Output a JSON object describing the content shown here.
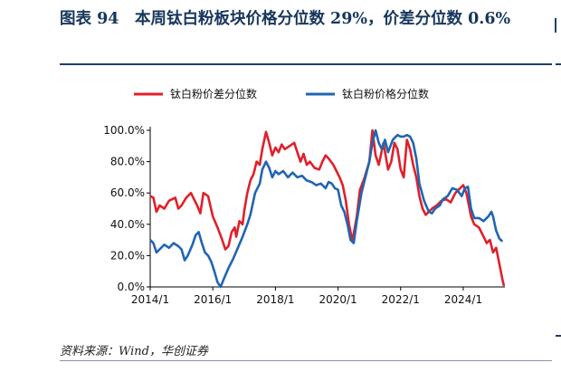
{
  "header": {
    "title": "图表 94　本周钛白粉板块价格分位数 29%，价差分位数 0.6%"
  },
  "footer": {
    "source": "资料来源：Wind，华创证券"
  },
  "colors": {
    "title": "#16365c",
    "rule": "#1f3f6b",
    "price_spread_series": "#e0202a",
    "price_series": "#1f66b3"
  },
  "chart_data": {
    "type": "line",
    "title": "本周钛白粉板块价格分位数 29%，价差分位数 0.6%",
    "xlabel": "",
    "ylabel": "",
    "x_range": [
      2014.0,
      2025.33
    ],
    "ylim": [
      0,
      100
    ],
    "grid": false,
    "legend_position": "top",
    "x_ticks": [
      {
        "value": 2014.0,
        "label": "2014/1"
      },
      {
        "value": 2016.0,
        "label": "2016/1"
      },
      {
        "value": 2018.0,
        "label": "2018/1"
      },
      {
        "value": 2020.0,
        "label": "2020/1"
      },
      {
        "value": 2022.0,
        "label": "2022/1"
      },
      {
        "value": 2024.0,
        "label": "2024/1"
      }
    ],
    "y_ticks": [
      {
        "value": 0,
        "label": "0.0%"
      },
      {
        "value": 20,
        "label": "20.0%"
      },
      {
        "value": 40,
        "label": "40.0%"
      },
      {
        "value": 60,
        "label": "60.0%"
      },
      {
        "value": 80,
        "label": "80.0%"
      },
      {
        "value": 100,
        "label": "100.0%"
      }
    ],
    "series": [
      {
        "name": "钛白粉价差分位数",
        "color": "#e0202a",
        "points": [
          [
            2014.0,
            58
          ],
          [
            2014.1,
            57
          ],
          [
            2014.2,
            48
          ],
          [
            2014.3,
            52
          ],
          [
            2014.45,
            50
          ],
          [
            2014.6,
            55
          ],
          [
            2014.8,
            57
          ],
          [
            2014.9,
            50
          ],
          [
            2015.0,
            52
          ],
          [
            2015.15,
            57
          ],
          [
            2015.3,
            60
          ],
          [
            2015.4,
            56
          ],
          [
            2015.5,
            52
          ],
          [
            2015.6,
            47
          ],
          [
            2015.7,
            60
          ],
          [
            2015.85,
            58
          ],
          [
            2016.0,
            45
          ],
          [
            2016.15,
            38
          ],
          [
            2016.3,
            30
          ],
          [
            2016.4,
            24
          ],
          [
            2016.5,
            26
          ],
          [
            2016.6,
            35
          ],
          [
            2016.7,
            38
          ],
          [
            2016.75,
            32
          ],
          [
            2016.85,
            42
          ],
          [
            2016.95,
            40
          ],
          [
            2017.0,
            48
          ],
          [
            2017.1,
            60
          ],
          [
            2017.2,
            68
          ],
          [
            2017.3,
            72
          ],
          [
            2017.4,
            80
          ],
          [
            2017.5,
            78
          ],
          [
            2017.58,
            88
          ],
          [
            2017.7,
            99
          ],
          [
            2017.8,
            92
          ],
          [
            2017.9,
            84
          ],
          [
            2018.0,
            89
          ],
          [
            2018.1,
            86
          ],
          [
            2018.2,
            91
          ],
          [
            2018.3,
            88
          ],
          [
            2018.45,
            90
          ],
          [
            2018.6,
            92
          ],
          [
            2018.7,
            86
          ],
          [
            2018.8,
            80
          ],
          [
            2018.9,
            85
          ],
          [
            2019.0,
            78
          ],
          [
            2019.1,
            80
          ],
          [
            2019.25,
            76
          ],
          [
            2019.4,
            75
          ],
          [
            2019.5,
            80
          ],
          [
            2019.6,
            84
          ],
          [
            2019.7,
            82
          ],
          [
            2019.85,
            78
          ],
          [
            2019.95,
            74
          ],
          [
            2020.05,
            70
          ],
          [
            2020.15,
            65
          ],
          [
            2020.25,
            55
          ],
          [
            2020.35,
            40
          ],
          [
            2020.45,
            30
          ],
          [
            2020.5,
            34
          ],
          [
            2020.6,
            45
          ],
          [
            2020.7,
            62
          ],
          [
            2020.85,
            70
          ],
          [
            2021.0,
            80
          ],
          [
            2021.1,
            100
          ],
          [
            2021.2,
            84
          ],
          [
            2021.3,
            78
          ],
          [
            2021.45,
            92
          ],
          [
            2021.6,
            75
          ],
          [
            2021.7,
            80
          ],
          [
            2021.8,
            92
          ],
          [
            2021.9,
            88
          ],
          [
            2022.0,
            75
          ],
          [
            2022.1,
            70
          ],
          [
            2022.2,
            94
          ],
          [
            2022.3,
            88
          ],
          [
            2022.4,
            78
          ],
          [
            2022.5,
            70
          ],
          [
            2022.6,
            58
          ],
          [
            2022.7,
            50
          ],
          [
            2022.8,
            46
          ],
          [
            2022.9,
            48
          ],
          [
            2023.0,
            50
          ],
          [
            2023.15,
            52
          ],
          [
            2023.3,
            55
          ],
          [
            2023.45,
            56
          ],
          [
            2023.6,
            54
          ],
          [
            2023.75,
            60
          ],
          [
            2023.85,
            62
          ],
          [
            2024.0,
            65
          ],
          [
            2024.1,
            60
          ],
          [
            2024.15,
            55
          ],
          [
            2024.25,
            45
          ],
          [
            2024.35,
            40
          ],
          [
            2024.5,
            38
          ],
          [
            2024.65,
            32
          ],
          [
            2024.75,
            28
          ],
          [
            2024.85,
            30
          ],
          [
            2024.95,
            22
          ],
          [
            2025.05,
            25
          ],
          [
            2025.15,
            15
          ],
          [
            2025.25,
            5
          ],
          [
            2025.3,
            0.6
          ]
        ]
      },
      {
        "name": "钛白粉价格分位数",
        "color": "#1f66b3",
        "points": [
          [
            2014.0,
            30
          ],
          [
            2014.1,
            28
          ],
          [
            2014.2,
            22
          ],
          [
            2014.3,
            24
          ],
          [
            2014.45,
            27
          ],
          [
            2014.6,
            25
          ],
          [
            2014.75,
            28
          ],
          [
            2014.9,
            26
          ],
          [
            2015.0,
            24
          ],
          [
            2015.1,
            17
          ],
          [
            2015.2,
            20
          ],
          [
            2015.35,
            27
          ],
          [
            2015.45,
            33
          ],
          [
            2015.55,
            35
          ],
          [
            2015.65,
            28
          ],
          [
            2015.75,
            22
          ],
          [
            2015.85,
            20
          ],
          [
            2015.95,
            16
          ],
          [
            2016.05,
            10
          ],
          [
            2016.15,
            3
          ],
          [
            2016.25,
            0
          ],
          [
            2016.35,
            5
          ],
          [
            2016.5,
            12
          ],
          [
            2016.65,
            18
          ],
          [
            2016.8,
            25
          ],
          [
            2016.95,
            32
          ],
          [
            2017.1,
            40
          ],
          [
            2017.2,
            46
          ],
          [
            2017.35,
            60
          ],
          [
            2017.5,
            66
          ],
          [
            2017.58,
            75
          ],
          [
            2017.7,
            80
          ],
          [
            2017.8,
            76
          ],
          [
            2017.9,
            70
          ],
          [
            2018.0,
            74
          ],
          [
            2018.1,
            72
          ],
          [
            2018.25,
            74
          ],
          [
            2018.4,
            70
          ],
          [
            2018.55,
            73
          ],
          [
            2018.7,
            70
          ],
          [
            2018.85,
            71
          ],
          [
            2019.0,
            68
          ],
          [
            2019.15,
            67
          ],
          [
            2019.3,
            65
          ],
          [
            2019.45,
            66
          ],
          [
            2019.6,
            63
          ],
          [
            2019.7,
            67
          ],
          [
            2019.8,
            66
          ],
          [
            2019.9,
            63
          ],
          [
            2020.0,
            62
          ],
          [
            2020.1,
            52
          ],
          [
            2020.2,
            48
          ],
          [
            2020.3,
            40
          ],
          [
            2020.4,
            30
          ],
          [
            2020.5,
            28
          ],
          [
            2020.6,
            42
          ],
          [
            2020.75,
            60
          ],
          [
            2020.9,
            72
          ],
          [
            2021.0,
            80
          ],
          [
            2021.1,
            92
          ],
          [
            2021.2,
            100
          ],
          [
            2021.3,
            92
          ],
          [
            2021.4,
            88
          ],
          [
            2021.5,
            94
          ],
          [
            2021.6,
            86
          ],
          [
            2021.75,
            94
          ],
          [
            2021.9,
            97
          ],
          [
            2022.0,
            96
          ],
          [
            2022.1,
            96
          ],
          [
            2022.2,
            97
          ],
          [
            2022.3,
            96
          ],
          [
            2022.4,
            92
          ],
          [
            2022.5,
            82
          ],
          [
            2022.6,
            66
          ],
          [
            2022.75,
            55
          ],
          [
            2022.9,
            48
          ],
          [
            2023.0,
            47
          ],
          [
            2023.1,
            50
          ],
          [
            2023.25,
            52
          ],
          [
            2023.35,
            56
          ],
          [
            2023.5,
            58
          ],
          [
            2023.65,
            63
          ],
          [
            2023.8,
            62
          ],
          [
            2023.95,
            58
          ],
          [
            2024.05,
            63
          ],
          [
            2024.15,
            64
          ],
          [
            2024.25,
            50
          ],
          [
            2024.35,
            44
          ],
          [
            2024.5,
            44
          ],
          [
            2024.65,
            42
          ],
          [
            2024.8,
            45
          ],
          [
            2024.9,
            48
          ],
          [
            2024.95,
            45
          ],
          [
            2025.05,
            36
          ],
          [
            2025.15,
            31
          ],
          [
            2025.25,
            29
          ]
        ]
      }
    ]
  }
}
